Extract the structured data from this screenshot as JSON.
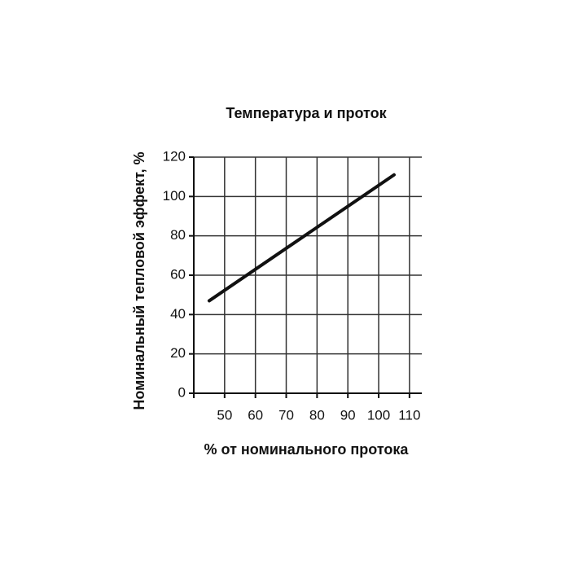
{
  "chart_data": {
    "type": "line",
    "title": "Температура и проток",
    "x_label": "% от номинального протока",
    "y_label": "Номинальный тепловой эффект, %",
    "x": [
      45,
      105
    ],
    "values": [
      47,
      111
    ],
    "color": "#111111",
    "xlim": [
      40,
      114
    ],
    "xticks": [
      50,
      60,
      70,
      80,
      90,
      100,
      110
    ],
    "ylim": [
      0,
      120
    ],
    "yticks": [
      0,
      20,
      40,
      60,
      80,
      100,
      120
    ],
    "grid": true
  }
}
